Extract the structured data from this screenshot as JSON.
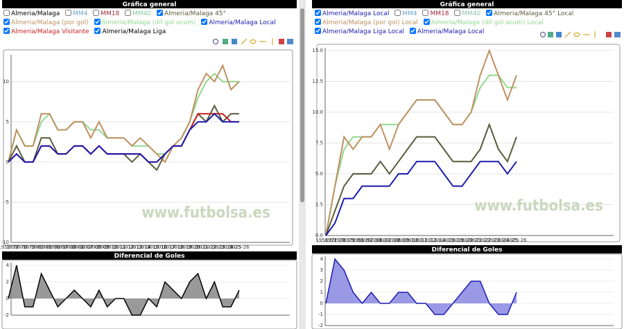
{
  "chart_data": [
    {
      "type": "line",
      "title": "Gráfica general",
      "watermark": "www.futbolsa.es",
      "options": [
        {
          "label": "Almeria/Malaga",
          "checked": false,
          "color": "#000000"
        },
        {
          "label": "MM4",
          "checked": false,
          "color": "#6aa0c8"
        },
        {
          "label": "MM18",
          "checked": false,
          "color": "#a02838"
        },
        {
          "label": "MM40",
          "checked": false,
          "color": "#88c8a8"
        },
        {
          "label": "Almeria/Malaga 45°",
          "checked": true,
          "color": "#5a5a3a"
        },
        {
          "label": "Almeria/Malaga (por gol)",
          "checked": true,
          "color": "#c09060"
        },
        {
          "label": "Almeria/Malaga (dif gol acum)",
          "checked": true,
          "color": "#90d890"
        },
        {
          "label": "Almeria/Malaga Local",
          "checked": true,
          "color": "#1a1ab0"
        },
        {
          "label": "Almeria/Malaga Visitante",
          "checked": true,
          "color": "#c82020"
        },
        {
          "label": "Almeria/Malaga Liga",
          "checked": true,
          "color": "#000000"
        }
      ],
      "categories": [
        "1958-59",
        "1977-78",
        "1978-79",
        "1979-80",
        "1980-81",
        "1995-96",
        "1996-97",
        "1997-98",
        "2000-01",
        "2006-07",
        "2007-08",
        "2008-09",
        "2009-10",
        "2010-11",
        "2011-12",
        "2012-13",
        "2013-14",
        "2014-15",
        "2015-16",
        "2016-17",
        "2017-18",
        "2018-19",
        "2019-20",
        "2020-21",
        "2021-22",
        "2022-23",
        "2023-24",
        "2024-25",
        "2025-26"
      ],
      "series": [
        {
          "color": "#90d890",
          "values": [
            0,
            4,
            2,
            2,
            5,
            6,
            4,
            4,
            5,
            5,
            4,
            4,
            3,
            3,
            3,
            2,
            2,
            2,
            1,
            1,
            2,
            3,
            5,
            8,
            10,
            11,
            10,
            10,
            10
          ]
        },
        {
          "color": "#c09060",
          "values": [
            0,
            4,
            2,
            2,
            6,
            6,
            4,
            4,
            5,
            5,
            3,
            5,
            3,
            3,
            3,
            2,
            3,
            2,
            1,
            0,
            2,
            3,
            5,
            9,
            11,
            10,
            12,
            9,
            10
          ]
        },
        {
          "color": "#5a5a3a",
          "values": [
            0,
            2,
            0,
            0,
            3,
            3,
            1,
            1,
            2,
            2,
            1,
            2,
            1,
            1,
            1,
            0,
            1,
            0,
            -1,
            1,
            2,
            2,
            4,
            6,
            5,
            7,
            5,
            6,
            6
          ]
        },
        {
          "color": "#c82020",
          "values": [
            0,
            1,
            0,
            0,
            2,
            2,
            1,
            1,
            2,
            2,
            1,
            2,
            1,
            1,
            1,
            1,
            1,
            0,
            0,
            1,
            2,
            2,
            4,
            6,
            6,
            6,
            6,
            5,
            5
          ]
        },
        {
          "color": "#1a1ab0",
          "values": [
            0,
            1,
            0,
            0,
            2,
            2,
            1,
            1,
            2,
            2,
            1,
            2,
            1,
            1,
            1,
            1,
            1,
            0,
            0,
            1,
            2,
            2,
            4,
            5,
            5,
            6,
            5,
            5,
            5
          ]
        }
      ],
      "ylim": [
        -10,
        13
      ],
      "yticks": [
        -10,
        -5,
        0,
        5,
        10
      ],
      "grid": true
    },
    {
      "type": "line",
      "title": "Gráfica general",
      "watermark": "www.futbolsa.es",
      "options": [
        {
          "label": "Almeria/Malaga Local",
          "checked": true,
          "color": "#1a1ab0"
        },
        {
          "label": "MM4",
          "checked": false,
          "color": "#6aa0c8"
        },
        {
          "label": "MM18",
          "checked": false,
          "color": "#a02838"
        },
        {
          "label": "MM40",
          "checked": false,
          "color": "#88c8a8"
        },
        {
          "label": "Almeria/Malaga 45° Local",
          "checked": true,
          "color": "#5a5a3a"
        },
        {
          "label": "Almeria/Malaga (por gol) Local",
          "checked": true,
          "color": "#c09060"
        },
        {
          "label": "Almeria/Malaga (dif gol acum) Local",
          "checked": true,
          "color": "#90d890"
        },
        {
          "label": "Almeria/Malaga Liga Local",
          "checked": true,
          "color": "#1a1ab0"
        },
        {
          "label": "Almeria/Malaga Local",
          "checked": true,
          "color": "#1a1ab0"
        }
      ],
      "categories": [
        "1958-59",
        "1977-78",
        "1978-79",
        "1979-80",
        "1996-97",
        "1997-98",
        "2006-07",
        "2007-08",
        "2008-09",
        "2009-10",
        "2010-11",
        "2011-12",
        "2013-14",
        "2014-15",
        "2018-19",
        "2019-20",
        "2020-21",
        "2021-22",
        "2022-23",
        "2023-24",
        "2024-25",
        "2025-26"
      ],
      "series": [
        {
          "color": "#90d890",
          "values": [
            0,
            4,
            7,
            8,
            8,
            8,
            9,
            9,
            9,
            10,
            11,
            11,
            11,
            10,
            9,
            9,
            10,
            12,
            13,
            13,
            12,
            12
          ]
        },
        {
          "color": "#c09060",
          "values": [
            0,
            4,
            8,
            7,
            8,
            8,
            9,
            7,
            9,
            10,
            11,
            11,
            11,
            10,
            9,
            9,
            10,
            13,
            15,
            13,
            11,
            13
          ]
        },
        {
          "color": "#5a5a3a",
          "values": [
            0,
            2,
            4,
            5,
            5,
            5,
            6,
            5,
            6,
            7,
            8,
            8,
            8,
            7,
            6,
            6,
            6,
            7,
            9,
            7,
            6,
            8
          ]
        },
        {
          "color": "#1a1ab0",
          "values": [
            0,
            1,
            3,
            3,
            4,
            4,
            4,
            4,
            5,
            5,
            6,
            6,
            6,
            5,
            4,
            4,
            5,
            6,
            6,
            6,
            5,
            6
          ]
        }
      ],
      "ylim": [
        0,
        15
      ],
      "yticks": [
        {
          "value": 0,
          "label": "0.0"
        },
        {
          "value": 2.5,
          "label": "2.5"
        },
        {
          "value": 5,
          "label": "5.0"
        },
        {
          "value": 7.5,
          "label": "7.5"
        },
        {
          "value": 10,
          "label": "10.0"
        },
        {
          "value": 12.5,
          "label": "12.5"
        },
        {
          "value": 15,
          "label": "15.0"
        }
      ],
      "grid": true
    },
    {
      "type": "area",
      "title": "Diferencial de Goles",
      "color": "#808080",
      "line_color": "#000000",
      "values": [
        0,
        4,
        -1,
        -1,
        3,
        1,
        -1,
        0,
        1,
        0,
        -1,
        1,
        -1,
        0,
        0,
        -2,
        -2,
        0,
        -1,
        2,
        1,
        0,
        2,
        3,
        0,
        2,
        -1,
        -1,
        1
      ],
      "ylim": [
        -2,
        4
      ],
      "yticks": [
        -2,
        0,
        2,
        4
      ]
    },
    {
      "type": "area",
      "title": "Diferencial de Goles",
      "color": "#8080e0",
      "line_color": "#1a1ab0",
      "values": [
        0,
        4,
        3,
        1,
        0,
        1,
        0,
        0,
        1,
        1,
        0,
        0,
        -1,
        -1,
        0,
        1,
        2,
        2,
        0,
        -1,
        -1,
        1
      ],
      "ylim": [
        -2,
        4
      ],
      "yticks": [
        -2,
        -1,
        0,
        1,
        2,
        3,
        4
      ]
    }
  ]
}
